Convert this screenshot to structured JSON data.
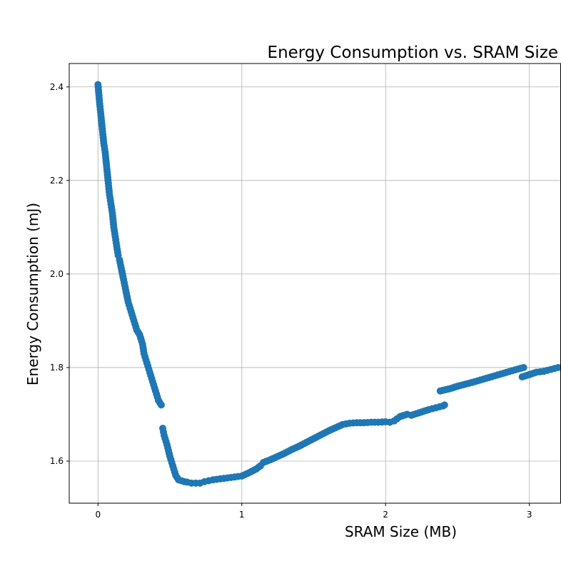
{
  "chart_data": {
    "type": "scatter",
    "title": "Energy Consumption vs. SRAM Size",
    "xlabel": "SRAM Size (MB)",
    "ylabel": "Energy Consumption (mJ)",
    "xlim": [
      -0.2,
      3.22
    ],
    "ylim": [
      1.51,
      2.45
    ],
    "xticks": [
      0,
      1,
      2,
      3
    ],
    "yticks": [
      1.6,
      1.8,
      2.0,
      2.2,
      2.4
    ],
    "xtick_labels": [
      "0",
      "1",
      "2",
      "3"
    ],
    "ytick_labels": [
      "1.6",
      "1.8",
      "2.0",
      "2.2",
      "2.4"
    ],
    "grid": true,
    "marker_color": "#1f77b4",
    "series": [
      {
        "x": [
          0.0,
          0.01,
          0.02,
          0.03,
          0.04,
          0.05,
          0.06,
          0.07,
          0.08,
          0.09,
          0.1,
          0.11,
          0.12,
          0.13,
          0.14,
          0.15,
          0.17,
          0.19,
          0.21,
          0.23,
          0.25,
          0.27,
          0.29,
          0.31,
          0.32,
          0.34,
          0.36,
          0.38,
          0.4,
          0.42,
          0.44,
          0.45,
          0.46,
          0.48,
          0.5,
          0.52,
          0.54,
          0.56,
          0.58,
          0.6,
          0.62,
          0.65,
          0.68,
          0.71,
          0.74,
          0.77,
          0.8,
          0.85,
          0.9,
          0.95,
          1.0,
          1.05,
          1.1,
          1.13,
          1.15,
          1.2,
          1.25,
          1.3,
          1.35,
          1.4,
          1.45,
          1.5,
          1.55,
          1.6,
          1.65,
          1.7,
          1.75,
          1.8,
          1.85,
          1.9,
          1.95,
          2.0,
          2.03,
          2.06,
          2.1,
          2.15,
          2.18,
          2.25,
          2.3,
          2.35,
          2.4,
          2.41,
          2.38,
          2.45,
          2.5,
          2.6,
          2.7,
          2.8,
          2.9,
          2.96,
          2.95,
          3.0,
          3.05,
          3.1,
          3.15,
          3.2
        ],
        "y": [
          2.405,
          2.37,
          2.34,
          2.31,
          2.28,
          2.26,
          2.23,
          2.2,
          2.17,
          2.15,
          2.13,
          2.1,
          2.08,
          2.06,
          2.04,
          2.03,
          2.0,
          1.97,
          1.94,
          1.92,
          1.9,
          1.88,
          1.87,
          1.85,
          1.83,
          1.81,
          1.79,
          1.77,
          1.75,
          1.73,
          1.72,
          1.67,
          1.655,
          1.635,
          1.61,
          1.59,
          1.57,
          1.56,
          1.558,
          1.556,
          1.555,
          1.553,
          1.553,
          1.553,
          1.556,
          1.558,
          1.56,
          1.562,
          1.564,
          1.566,
          1.568,
          1.575,
          1.583,
          1.59,
          1.597,
          1.603,
          1.61,
          1.617,
          1.625,
          1.632,
          1.64,
          1.648,
          1.656,
          1.664,
          1.671,
          1.678,
          1.681,
          1.682,
          1.682,
          1.683,
          1.683,
          1.684,
          1.683,
          1.686,
          1.695,
          1.7,
          1.698,
          1.705,
          1.71,
          1.714,
          1.718,
          1.72,
          1.75,
          1.755,
          1.76,
          1.768,
          1.777,
          1.786,
          1.795,
          1.8,
          1.78,
          1.785,
          1.79,
          1.792,
          1.796,
          1.8
        ]
      }
    ]
  }
}
